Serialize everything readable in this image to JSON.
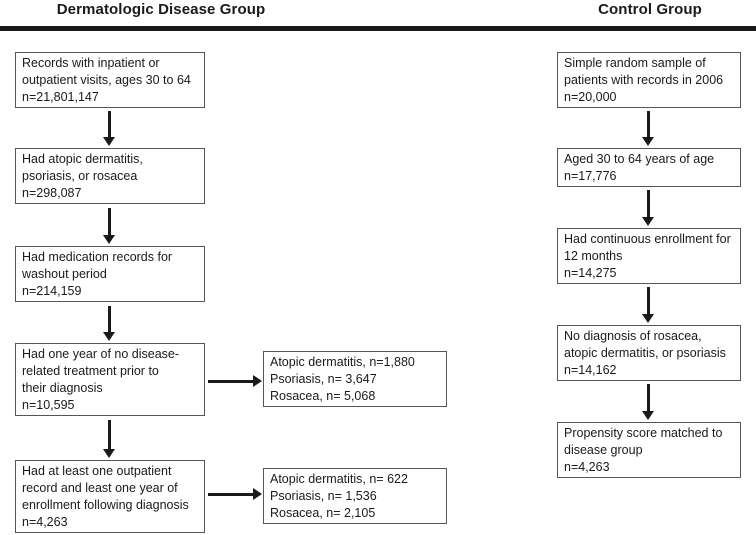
{
  "header": {
    "left_title": "Dermatologic Disease Group",
    "right_title": "Control Group"
  },
  "disease_column": {
    "boxes": [
      {
        "lines": [
          "Records with inpatient or",
          "outpatient visits, ages 30 to 64",
          "n=21,801,147"
        ]
      },
      {
        "lines": [
          "Had atopic dermatitis,",
          "psoriasis, or rosacea",
          "n=298,087"
        ]
      },
      {
        "lines": [
          "Had medication records for",
          "washout period",
          "n=214,159"
        ]
      },
      {
        "lines": [
          "Had one year of no disease-",
          "related treatment prior to",
          "their diagnosis",
          "n=10,595"
        ]
      },
      {
        "lines": [
          "Had at least one outpatient",
          "record and least one year of",
          "enrollment following diagnosis",
          "n=4,263"
        ]
      }
    ]
  },
  "breakdown_boxes": [
    {
      "lines": [
        "Atopic dermatitis, n=1,880",
        "Psoriasis, n= 3,647",
        "Rosacea, n= 5,068"
      ]
    },
    {
      "lines": [
        "Atopic dermatitis, n= 622",
        "Psoriasis, n= 1,536",
        "Rosacea, n= 2,105"
      ]
    }
  ],
  "control_column": {
    "boxes": [
      {
        "lines": [
          "Simple random sample of",
          "patients with records in 2006",
          "n=20,000"
        ]
      },
      {
        "lines": [
          "Aged 30 to 64 years of age",
          "n=17,776"
        ]
      },
      {
        "lines": [
          "Had continuous enrollment for",
          "12 months",
          "n=14,275"
        ]
      },
      {
        "lines": [
          "No diagnosis of rosacea,",
          "atopic dermatitis, or psoriasis",
          "n=14,162"
        ]
      },
      {
        "lines": [
          "Propensity score matched to",
          "disease group",
          "n=4,263"
        ]
      }
    ]
  },
  "colors": {
    "ink": "#1a1a1a",
    "box_border": "#555555",
    "background": "#ffffff"
  }
}
